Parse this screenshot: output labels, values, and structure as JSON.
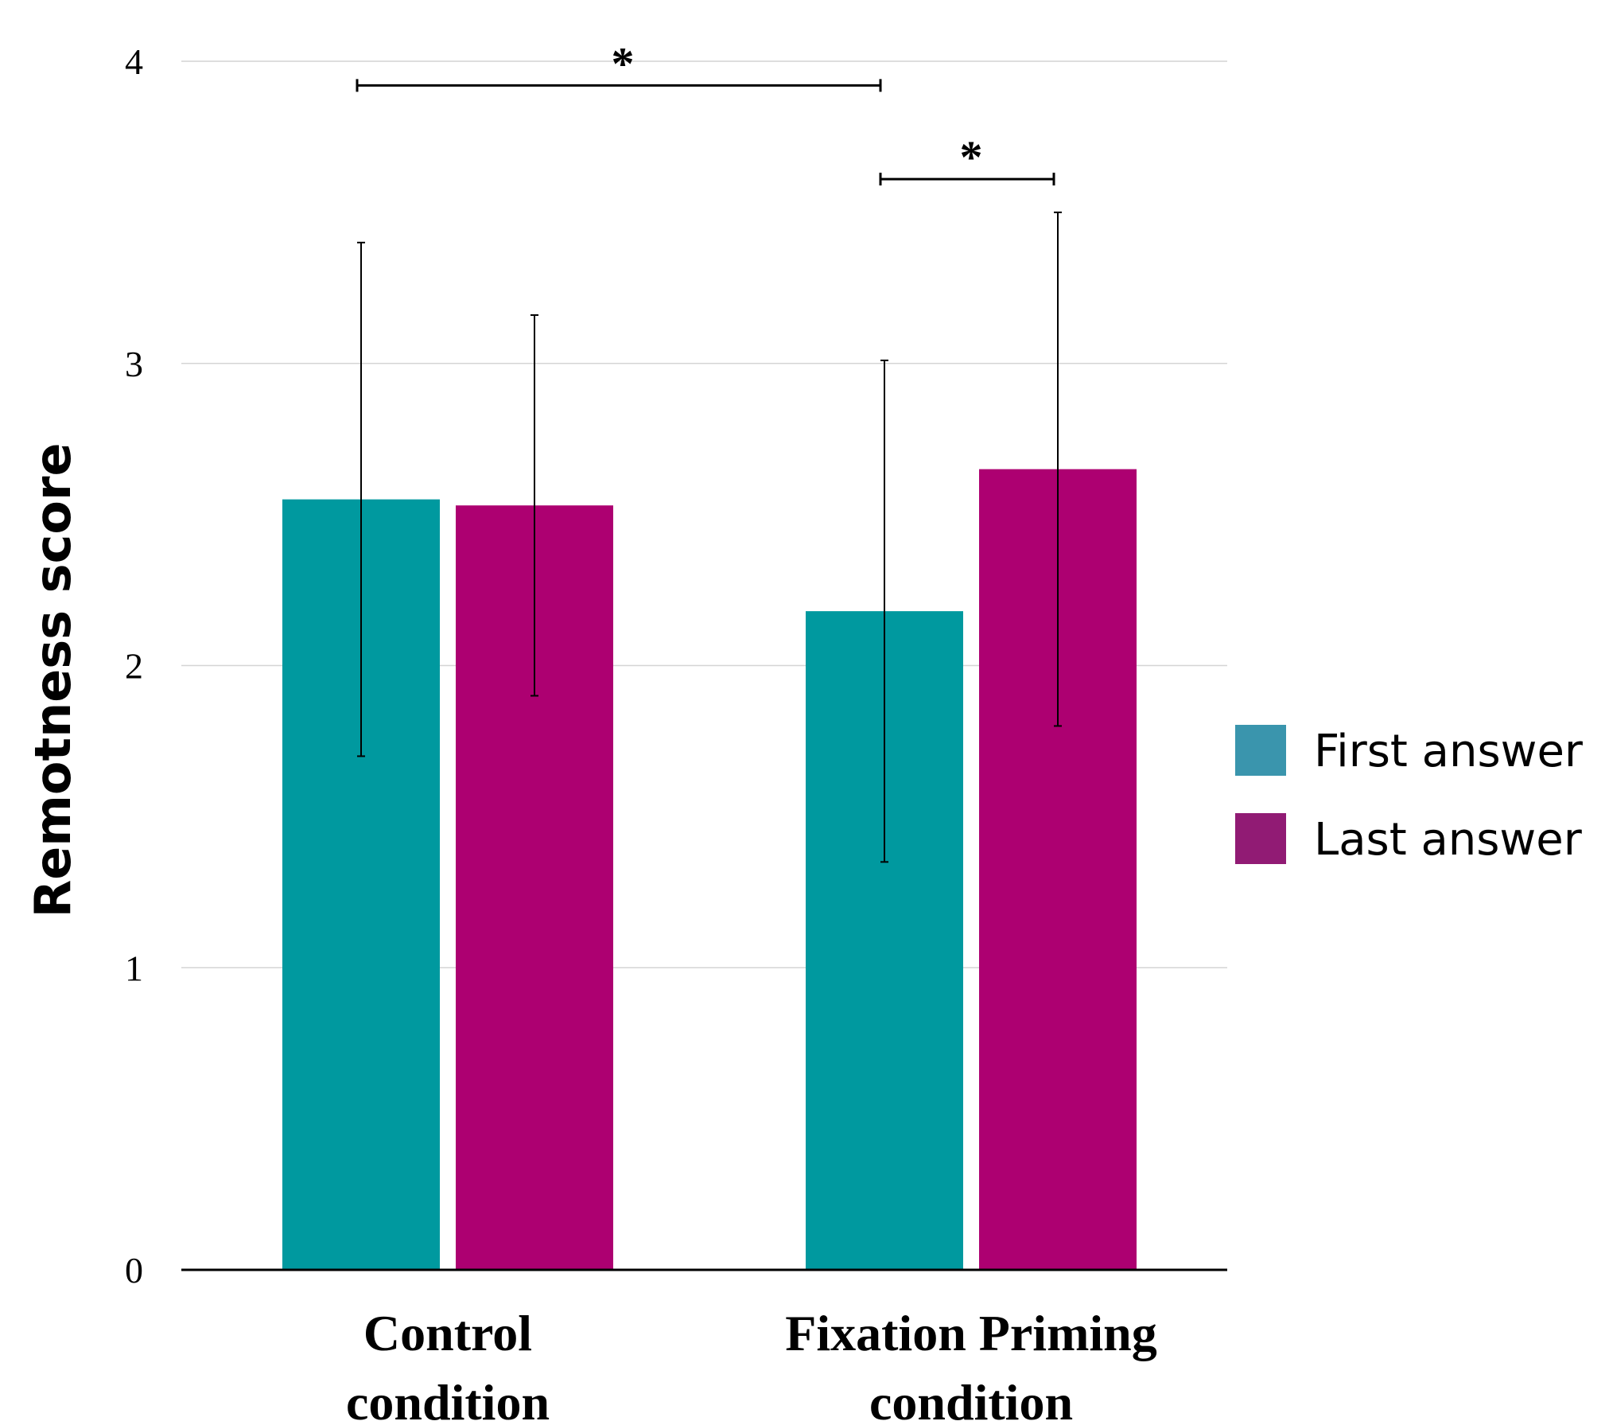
{
  "chart_data": {
    "type": "bar",
    "title": "",
    "xlabel": "",
    "ylabel": "Remotness score",
    "ylim": [
      0,
      4
    ],
    "yticks": [
      "0",
      "1",
      "2",
      "3",
      "4"
    ],
    "grid": true,
    "legend_position": "right",
    "categories": [
      {
        "line1": "Control",
        "line2": "condition"
      },
      {
        "line1": "Fixation Priming",
        "line2": "condition"
      }
    ],
    "series": [
      {
        "name": "First answer",
        "color": "#00999f",
        "legend_color": "#3a95ad",
        "values": [
          2.55,
          2.18
        ],
        "errors": [
          0.85,
          0.83
        ]
      },
      {
        "name": "Last answer",
        "color": "#ad0071",
        "legend_color": "#911b74",
        "values": [
          2.53,
          2.65
        ],
        "errors": [
          0.63,
          0.85
        ]
      }
    ],
    "annotations": [
      {
        "text": "*",
        "from_category": 0,
        "from_series": 0,
        "to_category": 1,
        "to_series": 0,
        "y": 3.92,
        "label_y": 4.02
      },
      {
        "text": "*",
        "from_category": 1,
        "from_series": 0,
        "to_category": 1,
        "to_series": 1,
        "y": 3.61,
        "label_y": 3.71
      }
    ]
  }
}
